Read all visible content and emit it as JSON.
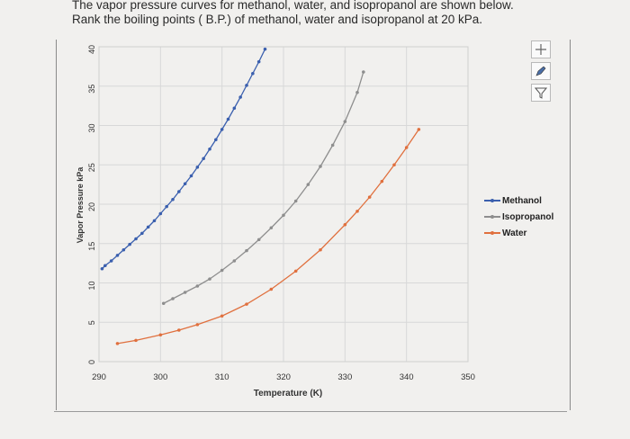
{
  "question": {
    "line1": "The vapor pressure curves for methanol, water, and isopropanol  are shown below.",
    "line2": "Rank the boiling points ( B.P.) of methanol, water and isopropanol at 20 kPa."
  },
  "toolbar": {
    "icons": [
      "crosshair-icon",
      "pencil-icon",
      "filter-icon"
    ]
  },
  "colors": {
    "methanol": "#3a5fae",
    "isopropanol": "#8e8e8e",
    "water": "#e0703e",
    "grid": "#d8d8d8"
  },
  "legend": {
    "methanol": "Methanol",
    "isopropanol": "Isopropanol",
    "water": "Water"
  },
  "chart_data": {
    "type": "line",
    "xlabel": "Temperature (K)",
    "ylabel": "Vapor Pressure kPa",
    "xlim": [
      290,
      350
    ],
    "ylim": [
      0,
      40
    ],
    "xticks": [
      290,
      300,
      310,
      320,
      330,
      340,
      350
    ],
    "yticks": [
      0,
      5,
      10,
      15,
      20,
      25,
      30,
      35,
      40
    ],
    "grid": true,
    "legend_position": "right",
    "series": [
      {
        "name": "Methanol",
        "x": [
          290.5,
          291,
          292,
          293,
          294,
          295,
          296,
          297,
          298,
          299,
          300,
          301,
          302,
          303,
          304,
          305,
          306,
          307,
          308,
          309,
          310,
          311,
          312,
          313,
          314,
          315,
          316,
          317
        ],
        "y": [
          11.8,
          12.2,
          12.8,
          13.5,
          14.2,
          14.9,
          15.6,
          16.3,
          17.1,
          17.9,
          18.8,
          19.7,
          20.6,
          21.6,
          22.6,
          23.6,
          24.7,
          25.8,
          27.0,
          28.2,
          29.5,
          30.8,
          32.2,
          33.6,
          35.1,
          36.6,
          38.1,
          39.7
        ]
      },
      {
        "name": "Isopropanol",
        "x": [
          300.5,
          302,
          304,
          306,
          308,
          310,
          312,
          314,
          316,
          318,
          320,
          322,
          324,
          326,
          328,
          330,
          332,
          333
        ],
        "y": [
          7.4,
          8.0,
          8.8,
          9.6,
          10.5,
          11.6,
          12.8,
          14.1,
          15.5,
          17.0,
          18.6,
          20.4,
          22.5,
          24.8,
          27.5,
          30.5,
          34.2,
          36.8
        ]
      },
      {
        "name": "Water",
        "x": [
          293,
          296,
          300,
          303,
          306,
          310,
          314,
          318,
          322,
          326,
          330,
          332,
          334,
          336,
          338,
          340,
          342
        ],
        "y": [
          2.3,
          2.7,
          3.4,
          4.0,
          4.7,
          5.8,
          7.3,
          9.2,
          11.5,
          14.2,
          17.4,
          19.1,
          20.9,
          22.9,
          25.0,
          27.2,
          29.5
        ]
      }
    ]
  }
}
